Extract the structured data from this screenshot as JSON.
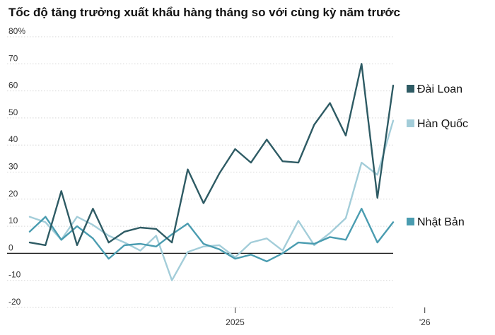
{
  "chart_data": {
    "type": "line",
    "title": "Tốc độ tăng trưởng xuất khẩu hàng tháng so với cùng kỳ năm trước",
    "ylim": [
      -20,
      80
    ],
    "y_ticks": [
      "80%",
      "70",
      "60",
      "50",
      "40",
      "30",
      "20",
      "10",
      "0",
      "-10",
      "-20"
    ],
    "y_tick_values": [
      80,
      70,
      60,
      50,
      40,
      30,
      20,
      10,
      0,
      -10,
      -20
    ],
    "x_labels": [
      {
        "label": "2025",
        "index": 13
      },
      {
        "label": "'26",
        "index": 25
      }
    ],
    "grid": true,
    "series": [
      {
        "name": "Đài Loan",
        "color": "#2e5b64",
        "values": [
          4,
          3,
          23,
          3,
          16.5,
          4,
          8,
          9.5,
          9,
          4,
          31,
          18.5,
          29.5,
          38.5,
          33.5,
          42,
          34,
          33.5,
          47.5,
          55.5,
          43.5,
          70,
          20.5,
          62
        ]
      },
      {
        "name": "Hàn Quốc",
        "color": "#a3cdd9",
        "values": [
          13.5,
          11.5,
          5,
          13.5,
          10.5,
          6.5,
          4,
          1,
          6.5,
          -10,
          0.5,
          2.5,
          3,
          -1.5,
          4,
          5.5,
          1,
          12,
          3,
          7.5,
          13,
          33.5,
          29,
          49
        ]
      },
      {
        "name": "Nhật Bản",
        "color": "#4a9cb0",
        "values": [
          8,
          13.5,
          5,
          10,
          5.5,
          -2,
          3,
          3.5,
          2.5,
          7,
          11,
          3.5,
          1.5,
          -2,
          -0.5,
          -3,
          0,
          4,
          3.5,
          6,
          5,
          16.5,
          4,
          11.5
        ]
      }
    ]
  }
}
